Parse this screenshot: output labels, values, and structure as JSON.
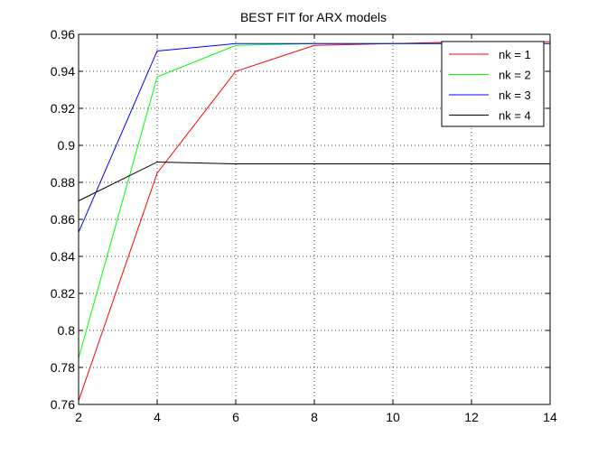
{
  "chart_data": {
    "type": "line",
    "title": "BEST FIT for ARX models",
    "xlabel": "",
    "ylabel": "",
    "xlim": [
      2,
      14
    ],
    "ylim": [
      0.76,
      0.96
    ],
    "xticks": [
      2,
      4,
      6,
      8,
      10,
      12,
      14
    ],
    "yticks": [
      0.76,
      0.78,
      0.8,
      0.82,
      0.84,
      0.86,
      0.88,
      0.9,
      0.92,
      0.94,
      0.96
    ],
    "xtick_labels": [
      "2",
      "4",
      "6",
      "8",
      "10",
      "12",
      "14"
    ],
    "ytick_labels": [
      "0.76",
      "0.78",
      "0.8",
      "0.82",
      "0.84",
      "0.86",
      "0.88",
      "0.9",
      "0.92",
      "0.94",
      "0.96"
    ],
    "grid": true,
    "legend_position": "top-right",
    "x": [
      2,
      4,
      6,
      8,
      10,
      12,
      14
    ],
    "series": [
      {
        "name": "nk = 1",
        "color": "#ff0000",
        "values": [
          0.762,
          0.885,
          0.94,
          0.954,
          0.955,
          0.956,
          0.956
        ]
      },
      {
        "name": "nk = 2",
        "color": "#00ff00",
        "values": [
          0.785,
          0.937,
          0.954,
          0.955,
          0.955,
          0.955,
          0.955
        ]
      },
      {
        "name": "nk = 3",
        "color": "#0000ff",
        "values": [
          0.853,
          0.951,
          0.955,
          0.955,
          0.955,
          0.955,
          0.955
        ]
      },
      {
        "name": "nk = 4",
        "color": "#000000",
        "values": [
          0.87,
          0.891,
          0.89,
          0.89,
          0.89,
          0.89,
          0.89
        ]
      }
    ]
  }
}
